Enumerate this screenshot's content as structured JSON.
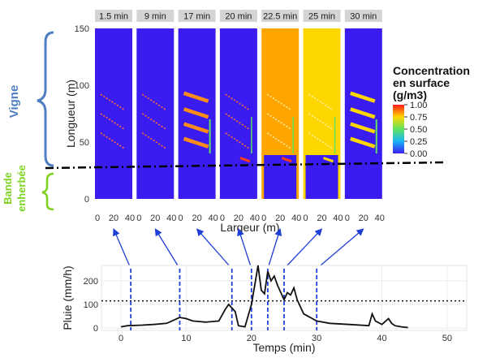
{
  "colors": {
    "blue": "#3a1cf0",
    "orange": "#ffa500",
    "yellow": "#ffd700",
    "red": "#ff3b1a",
    "green": "#5fe35f",
    "vigne": "#4f7ec2",
    "bande": "#7ed321",
    "arrow": "#1f3fd6",
    "strip_bg": "#d4d4d4"
  },
  "annotations": {
    "vigne": "Vigne",
    "bande_line1": "Bande",
    "bande_line2": "enherbée"
  },
  "chart_data": [
    {
      "type": "heatmap",
      "facets": [
        "1.5 min",
        "9 min",
        "17 min",
        "20 min",
        "22.5 min",
        "25 min",
        "30 min"
      ],
      "facet_fill": [
        "blue",
        "blue",
        "blue",
        "blue",
        "orange",
        "yellow",
        "blue"
      ],
      "facet_pattern": [
        "dashed-diagonals",
        "dashed-diagonals",
        "orange-bands",
        "dashed-diagonals",
        "dashed-diagonals",
        "dashed-diagonals",
        "yellow-bands"
      ],
      "xlabel": "Largeur (m)",
      "ylabel": "Longueur (m)",
      "x_ticks": [
        0,
        20,
        40
      ],
      "y_ticks": [
        0,
        50,
        100,
        150
      ],
      "xlim": [
        0,
        40
      ],
      "ylim": [
        0,
        150
      ],
      "legend": {
        "title_line1": "Concentration",
        "title_line2": "en surface",
        "title_line3": "(g/m3)",
        "ticks": [
          "1.00",
          "0.75",
          "0.50",
          "0.25",
          "0.00"
        ],
        "range": [
          0,
          1
        ]
      },
      "boundary_y": 40
    },
    {
      "type": "line",
      "xlabel": "Temps (min)",
      "ylabel": "Pluie (mm/h)",
      "xlim": [
        -3,
        53
      ],
      "ylim": [
        -10,
        265
      ],
      "x_ticks": [
        0,
        10,
        20,
        30,
        40,
        50
      ],
      "y_ticks": [
        0,
        100,
        200
      ],
      "reference_line": 115,
      "marker_times": [
        1.5,
        9,
        17,
        20,
        22.5,
        25,
        30
      ],
      "x": [
        0,
        1,
        3,
        5,
        7,
        9,
        10,
        11,
        13,
        15,
        16,
        16.5,
        17,
        17.5,
        18,
        19,
        20,
        20.5,
        21,
        21.5,
        22,
        22.5,
        23,
        23.5,
        24,
        25,
        25.5,
        26,
        26.5,
        27,
        28,
        30,
        32,
        35,
        38,
        38.5,
        39,
        40,
        41,
        41.5,
        42,
        43,
        44
      ],
      "y": [
        5,
        10,
        12,
        15,
        20,
        45,
        40,
        30,
        25,
        30,
        80,
        100,
        85,
        70,
        10,
        5,
        100,
        180,
        265,
        160,
        145,
        240,
        200,
        220,
        180,
        120,
        150,
        140,
        170,
        120,
        60,
        30,
        20,
        15,
        10,
        60,
        30,
        15,
        40,
        20,
        10,
        5,
        2
      ]
    }
  ]
}
